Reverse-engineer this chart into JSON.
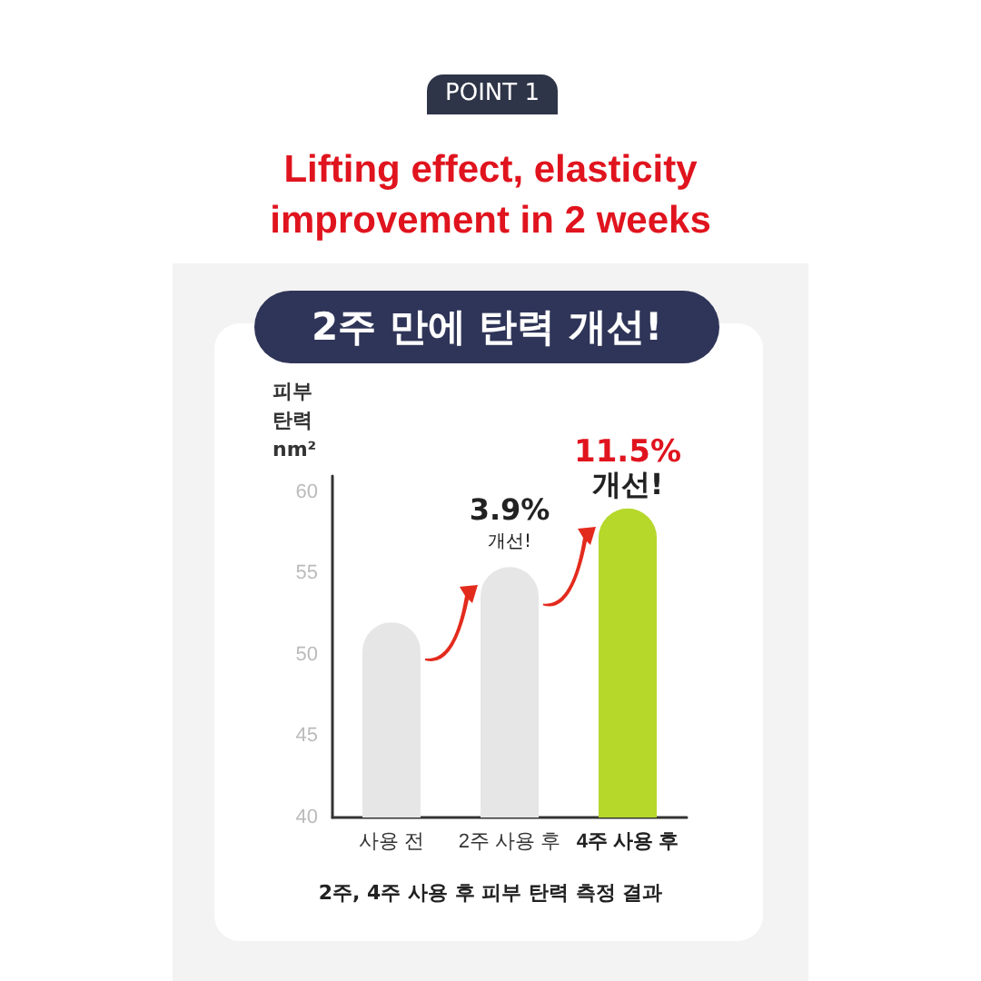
{
  "chart_data": {
    "type": "bar",
    "title": "Lifting effect, elasticity improvement in 2 weeks",
    "subtitle": "2주 만에 탄력 개선!",
    "ylabel": "피부\n탄력\nnm²",
    "categories": [
      "사용 전",
      "2주 사용 후",
      "4주 사용 후"
    ],
    "values": [
      52,
      55.4,
      59
    ],
    "colors": [
      "#e6e6e6",
      "#e6e6e6",
      "#b5d82b"
    ],
    "ylim": [
      40,
      61
    ],
    "yticks": [
      40,
      45,
      50,
      55,
      60
    ],
    "annotations": [
      "POINT 1",
      {
        "text": "3.9%\n개선!",
        "x": "2주 사용 후",
        "y": 55.4
      },
      {
        "text": "11.5%\n개선!",
        "x": "4주 사용 후",
        "y": 59
      },
      "2주, 4주 사용 후 피부 탄력 측정 결과"
    ]
  }
}
